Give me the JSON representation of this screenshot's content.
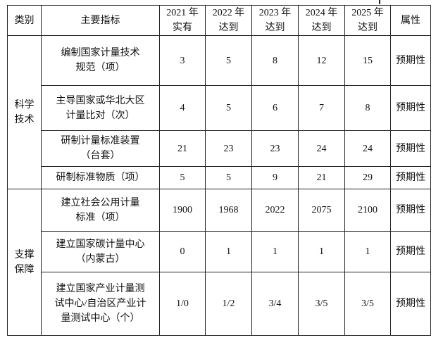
{
  "headers": [
    "类别",
    "主要指标",
    "2021 年实有",
    "2022 年达到",
    "2023 年达到",
    "2024 年达到",
    "2025 年达到",
    "属性"
  ],
  "header_lines": [
    [
      "类别"
    ],
    [
      "主要指标"
    ],
    [
      "2021 年",
      "实有"
    ],
    [
      "2022 年",
      "达到"
    ],
    [
      "2023 年",
      "达到"
    ],
    [
      "2024 年",
      "达到"
    ],
    [
      "2025 年",
      "达到"
    ],
    [
      "属性"
    ]
  ],
  "groups": [
    {
      "category_lines": [
        "科学",
        "技术"
      ],
      "rows": [
        {
          "indicator_lines": [
            "编制国家计量技术",
            "规范（项）"
          ],
          "values": [
            "3",
            "5",
            "8",
            "12",
            "15"
          ],
          "attribute": "预期性"
        },
        {
          "indicator_lines": [
            "主导国家或华北大区",
            "计量比对（次）"
          ],
          "values": [
            "4",
            "5",
            "6",
            "7",
            "8"
          ],
          "attribute": "预期性"
        },
        {
          "indicator_lines": [
            "研制计量标准装置",
            "（台套）"
          ],
          "values": [
            "21",
            "23",
            "23",
            "24",
            "24"
          ],
          "attribute": "预期性"
        },
        {
          "indicator_lines": [
            "研制标准物质（项）"
          ],
          "values": [
            "5",
            "5",
            "9",
            "21",
            "29"
          ],
          "attribute": "预期性"
        }
      ]
    },
    {
      "category_lines": [
        "支撑",
        "保障"
      ],
      "rows": [
        {
          "indicator_lines": [
            "建立社会公用计量",
            "标准（项）"
          ],
          "values": [
            "1900",
            "1968",
            "2022",
            "2075",
            "2100"
          ],
          "attribute": "预期性"
        },
        {
          "indicator_lines": [
            "建立国家碳计量中心",
            "（内蒙古）"
          ],
          "values": [
            "0",
            "1",
            "1",
            "1",
            "1"
          ],
          "attribute": "预期性"
        },
        {
          "indicator_lines": [
            "建立国家产业计量测",
            "试中心/自治区产业计",
            "量测试中心（个）"
          ],
          "values": [
            "1/0",
            "1/2",
            "3/4",
            "3/5",
            "3/5"
          ],
          "attribute": "预期性"
        }
      ]
    }
  ]
}
